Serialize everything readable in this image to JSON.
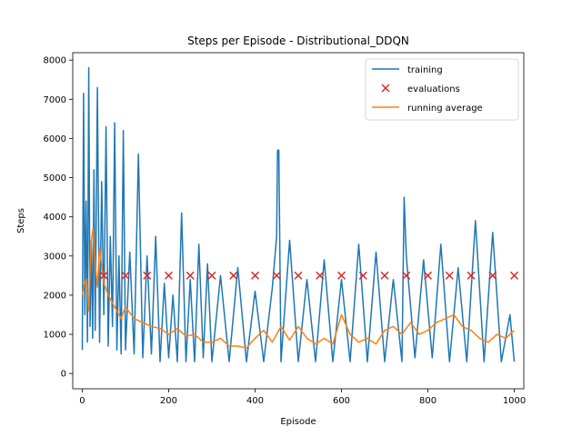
{
  "chart_data": {
    "type": "line",
    "title": "Steps per Episode - Distributional_DDQN",
    "xlabel": "Episode",
    "ylabel": "Steps",
    "xlim": [
      -22,
      1022
    ],
    "ylim": [
      -390,
      8190
    ],
    "xticks": [
      0,
      200,
      400,
      600,
      800,
      1000
    ],
    "yticks": [
      0,
      1000,
      2000,
      3000,
      4000,
      5000,
      6000,
      7000,
      8000
    ],
    "grid": false,
    "legend_position": "top-right",
    "colors": {
      "training": "#1f77b4",
      "evaluations": "#d62728",
      "running_average": "#ff7f0e"
    },
    "series": [
      {
        "name": "training",
        "kind": "line",
        "x": [
          0,
          3,
          6,
          9,
          12,
          15,
          18,
          21,
          24,
          27,
          30,
          35,
          40,
          45,
          50,
          55,
          60,
          65,
          70,
          75,
          80,
          85,
          90,
          95,
          100,
          110,
          120,
          130,
          140,
          150,
          160,
          170,
          180,
          190,
          200,
          210,
          220,
          230,
          240,
          250,
          260,
          270,
          280,
          290,
          300,
          320,
          340,
          360,
          380,
          400,
          420,
          440,
          450,
          452,
          455,
          460,
          480,
          500,
          520,
          540,
          560,
          580,
          600,
          620,
          640,
          660,
          680,
          700,
          720,
          740,
          745,
          750,
          770,
          790,
          810,
          830,
          850,
          870,
          890,
          910,
          930,
          950,
          970,
          990,
          1000
        ],
        "y": [
          600,
          7150,
          1500,
          4400,
          800,
          7800,
          1200,
          3400,
          900,
          5200,
          1100,
          7300,
          800,
          4900,
          1500,
          6300,
          700,
          3500,
          1200,
          6400,
          600,
          3000,
          500,
          6200,
          600,
          3100,
          500,
          5600,
          400,
          3000,
          500,
          3500,
          300,
          2300,
          400,
          2000,
          300,
          4100,
          300,
          2400,
          300,
          3300,
          400,
          2800,
          300,
          2500,
          300,
          2700,
          300,
          2100,
          300,
          2200,
          3500,
          5700,
          5700,
          300,
          3400,
          300,
          2400,
          300,
          2900,
          300,
          2400,
          300,
          3300,
          300,
          3100,
          300,
          2400,
          300,
          4500,
          3000,
          400,
          2900,
          400,
          3300,
          300,
          2700,
          300,
          3900,
          300,
          3600,
          300,
          1500,
          300
        ]
      },
      {
        "name": "evaluations",
        "kind": "scatter",
        "x": [
          50,
          100,
          150,
          200,
          250,
          300,
          350,
          400,
          450,
          500,
          550,
          600,
          650,
          700,
          750,
          800,
          850,
          900,
          950,
          1000
        ],
        "y": [
          2500,
          2500,
          2500,
          2500,
          2500,
          2500,
          2500,
          2500,
          2500,
          2500,
          2500,
          2500,
          2500,
          2500,
          2500,
          2500,
          2500,
          2500,
          2500,
          2500
        ]
      },
      {
        "name": "running average",
        "kind": "line",
        "x": [
          0,
          5,
          10,
          15,
          20,
          25,
          30,
          35,
          40,
          50,
          60,
          70,
          80,
          90,
          100,
          120,
          140,
          160,
          180,
          200,
          220,
          240,
          260,
          280,
          300,
          320,
          340,
          360,
          380,
          400,
          420,
          440,
          460,
          480,
          500,
          520,
          540,
          560,
          580,
          600,
          620,
          640,
          660,
          680,
          700,
          720,
          740,
          760,
          780,
          800,
          820,
          840,
          860,
          880,
          900,
          920,
          940,
          960,
          980,
          1000
        ],
        "y": [
          2000,
          2300,
          2400,
          1600,
          3300,
          3700,
          2800,
          2200,
          3200,
          2300,
          2000,
          1800,
          1600,
          1400,
          1700,
          1400,
          1300,
          1200,
          1150,
          1000,
          1150,
          950,
          1000,
          800,
          800,
          900,
          700,
          700,
          650,
          900,
          1100,
          800,
          1200,
          850,
          1200,
          900,
          750,
          900,
          750,
          1500,
          1000,
          800,
          900,
          750,
          1100,
          1200,
          1000,
          1300,
          1000,
          1100,
          1300,
          1400,
          1500,
          1200,
          1100,
          900,
          800,
          1000,
          900,
          1100
        ]
      }
    ]
  }
}
